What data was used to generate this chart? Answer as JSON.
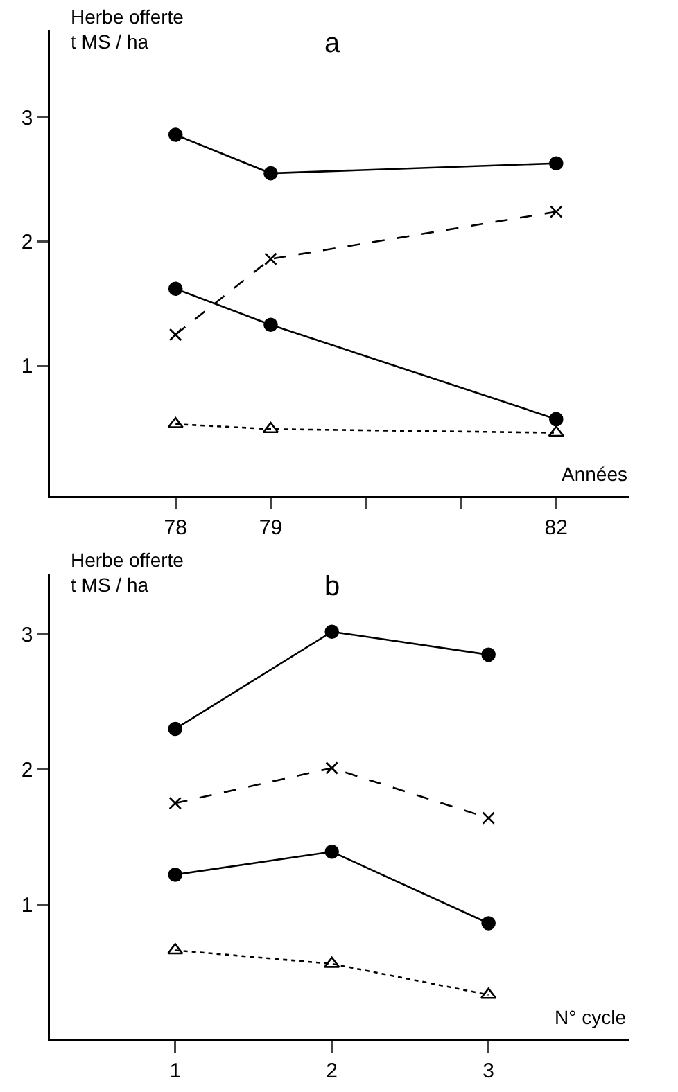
{
  "chart_data": [
    {
      "type": "line",
      "title": "a",
      "ylabel": "Herbe offerte\nt MS / ha",
      "xlabel": "Années",
      "x": [
        78,
        79,
        82
      ],
      "xlim": [
        76.68,
        82.77
      ],
      "xticks": [
        78,
        79,
        {
          "value": 80,
          "label": null
        },
        {
          "value": 81,
          "label": null
        },
        82
      ],
      "ylim": [
        -0.05,
        3.7
      ],
      "yticks": [
        1,
        2,
        3
      ],
      "grid": false,
      "series": [
        {
          "color": "#000000",
          "marker": "circle",
          "line_style": "solid",
          "values": [
            2.86,
            2.55,
            2.63
          ]
        },
        {
          "color": "#000000",
          "marker": "cross",
          "line_style": "dashed",
          "values": [
            1.25,
            1.86,
            2.24
          ]
        },
        {
          "color": "#000000",
          "marker": "circle",
          "line_style": "solid",
          "values": [
            1.62,
            1.33,
            0.57
          ]
        },
        {
          "color": "#000000",
          "marker": "triangle",
          "line_style": "dotted",
          "values": [
            0.53,
            0.49,
            0.46
          ]
        }
      ]
    },
    {
      "type": "line",
      "title": "b",
      "ylabel": "Herbe offerte\nt MS / ha",
      "xlabel": "N° cycle",
      "x": [
        1,
        2,
        3
      ],
      "xlim": [
        0.2,
        3.9
      ],
      "xticks": [
        1,
        2,
        3
      ],
      "ylim": [
        0,
        3.45
      ],
      "yticks": [
        1,
        2,
        3
      ],
      "grid": false,
      "series": [
        {
          "color": "#000000",
          "marker": "circle",
          "line_style": "solid",
          "values": [
            2.3,
            3.02,
            2.85
          ]
        },
        {
          "color": "#000000",
          "marker": "cross",
          "line_style": "dashed",
          "values": [
            1.75,
            2.01,
            1.64
          ]
        },
        {
          "color": "#000000",
          "marker": "circle",
          "line_style": "solid",
          "values": [
            1.22,
            1.39,
            0.86
          ]
        },
        {
          "color": "#000000",
          "marker": "triangle",
          "line_style": "dotted",
          "values": [
            0.66,
            0.56,
            0.33
          ]
        }
      ]
    }
  ]
}
